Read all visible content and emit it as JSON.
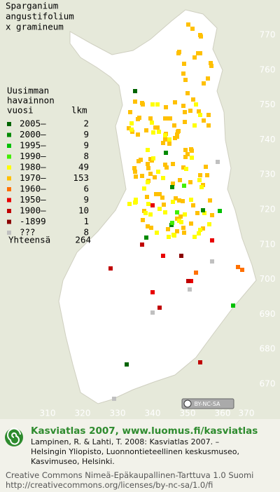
{
  "title": [
    "Sparganium",
    "angustifolium",
    "x gramineum"
  ],
  "legend": {
    "header": [
      "Uusimman",
      "havainnon"
    ],
    "header_year": "vuosi",
    "header_count": "lkm",
    "rows": [
      {
        "label": "2005–",
        "count": 2,
        "color": "#006400"
      },
      {
        "label": "2000–",
        "count": 9,
        "color": "#008a00"
      },
      {
        "label": "1995–",
        "count": 9,
        "color": "#00c000"
      },
      {
        "label": "1990–",
        "count": 8,
        "color": "#44ee00"
      },
      {
        "label": "1980–",
        "count": 49,
        "color": "#ffff00"
      },
      {
        "label": "1970–",
        "count": 153,
        "color": "#ffc000"
      },
      {
        "label": "1960–",
        "count": 6,
        "color": "#ff7000"
      },
      {
        "label": "1950–",
        "count": 9,
        "color": "#e80000"
      },
      {
        "label": "1900–",
        "count": 10,
        "color": "#c00000"
      },
      {
        "label": "-1899",
        "count": 1,
        "color": "#8a0000"
      },
      {
        "label": "???",
        "count": 8,
        "color": "#c0c0c0"
      }
    ],
    "total_label": "Yhteensä",
    "total": 264
  },
  "axes": {
    "x": [
      "310",
      "320",
      "330",
      "340",
      "350",
      "360",
      "370"
    ],
    "y": [
      "770",
      "760",
      "750",
      "740",
      "730",
      "720",
      "710",
      "700",
      "690",
      "680",
      "670"
    ]
  },
  "badge": "BY-NC-SA",
  "credits": {
    "heading": "Kasviatlas 2007, www.luomus.fi/kasviatlas",
    "reference": [
      "Lampinen, R. & Lahti, T. 2008: Kasviatlas 2007. –",
      "Helsingin Yliopisto, Luonnontieteellinen keskusmuseo,",
      "Kasvimuseo, Helsinki."
    ],
    "license": [
      "Creative Commons Nimeä-Epäkaupallinen-Tarttuva 1.0 Suomi",
      "http://creativecommons.org/licenses/by-nc-sa/1.0/fi"
    ]
  }
}
